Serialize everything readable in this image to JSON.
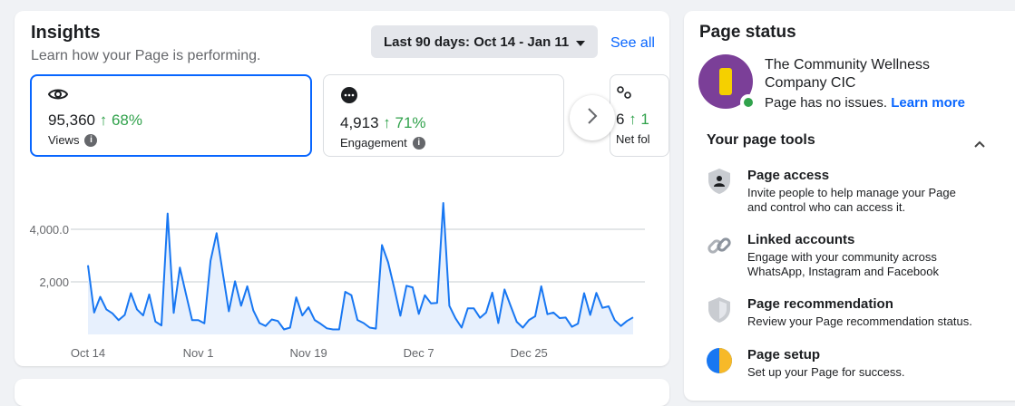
{
  "insights": {
    "title": "Insights",
    "subtitle": "Learn how your Page is performing.",
    "date_range": "Last 90 days: Oct 14 - Jan 11",
    "see_all": "See all",
    "metrics": [
      {
        "icon": "eye-icon",
        "value": "95,360",
        "change": "↑ 68%",
        "label": "Views"
      },
      {
        "icon": "chat-bubble-icon",
        "value": "4,913",
        "change": "↑ 71%",
        "label": "Engagement"
      },
      {
        "icon": "people-icon",
        "value": "6",
        "change": "↑ 1",
        "label": "Net fol"
      }
    ]
  },
  "chart_data": {
    "type": "area",
    "title": "",
    "xlabel": "",
    "ylabel": "",
    "grid": true,
    "color": "#1877f2",
    "ylim": [
      0,
      5000
    ],
    "y_ticks": [
      "2,000",
      "4,000.0"
    ],
    "y_tick_values": [
      2000,
      4000
    ],
    "x_ticks": [
      "Oct 14",
      "Nov 1",
      "Nov 19",
      "Dec 7",
      "Dec 25"
    ],
    "x_tick_index": [
      0,
      18,
      36,
      54,
      72
    ],
    "values": [
      2630,
      830,
      1430,
      950,
      800,
      540,
      740,
      1570,
      950,
      720,
      1520,
      490,
      340,
      4600,
      820,
      2540,
      1540,
      540,
      540,
      420,
      2800,
      3850,
      2340,
      880,
      2020,
      1090,
      1830,
      910,
      430,
      320,
      570,
      510,
      190,
      260,
      1410,
      720,
      1030,
      550,
      400,
      230,
      190,
      190,
      1620,
      1490,
      550,
      430,
      260,
      220,
      3400,
      2740,
      1770,
      710,
      1850,
      1790,
      780,
      1490,
      1180,
      1200,
      5000,
      1090,
      610,
      260,
      990,
      990,
      630,
      830,
      1590,
      430,
      1710,
      1090,
      480,
      260,
      550,
      690,
      1830,
      770,
      830,
      620,
      640,
      290,
      410,
      1570,
      740,
      1580,
      1010,
      1070,
      540,
      320,
      510,
      650
    ]
  },
  "page_status": {
    "title": "Page status",
    "page_name": "The Community Wellness Company CIC",
    "status": "Page has no issues.",
    "learn_more": "Learn more",
    "tools_title": "Your page tools",
    "tools": [
      {
        "icon": "shield-person-icon",
        "title": "Page access",
        "desc": "Invite people to help manage your Page and control who can access it."
      },
      {
        "icon": "link-icon",
        "title": "Linked accounts",
        "desc": "Engage with your community across WhatsApp, Instagram and Facebook"
      },
      {
        "icon": "shield-icon",
        "title": "Page recommendation",
        "desc": "Review your Page recommendation status."
      },
      {
        "icon": "setup-icon",
        "title": "Page setup",
        "desc": "Set up your Page for success."
      }
    ]
  }
}
